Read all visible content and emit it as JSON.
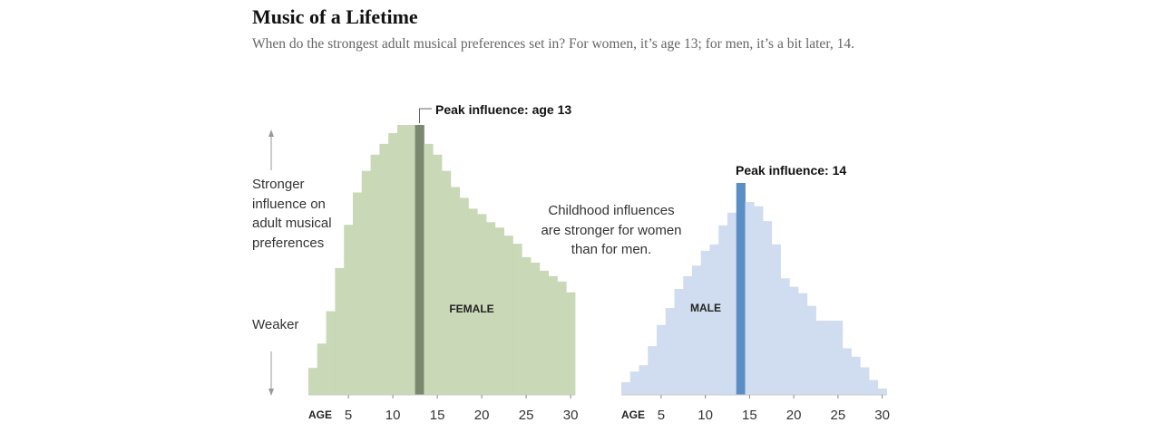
{
  "header": {
    "title": "Music of a Lifetime",
    "subtitle": "When do the strongest adult musical preferences set in? For women, it’s age 13; for men, it’s a bit later, 14."
  },
  "y_axis": {
    "stronger_label": "Stronger influence on adult musical preferences",
    "weaker_label": "Weaker"
  },
  "annotation": {
    "text": "Childhood influences are stronger for women than for men."
  },
  "chart_data": [
    {
      "type": "bar",
      "series": [
        {
          "name": "FEMALE",
          "color": "#c9d8b6",
          "peak_color": "#7a8870"
        }
      ],
      "x_axis_label": "AGE",
      "x": [
        1,
        2,
        3,
        4,
        5,
        6,
        7,
        8,
        9,
        10,
        11,
        12,
        13,
        14,
        15,
        16,
        17,
        18,
        19,
        20,
        21,
        22,
        23,
        24,
        25,
        26,
        27,
        28,
        29,
        30
      ],
      "values": [
        10,
        19,
        31,
        47,
        63,
        75,
        83,
        89,
        93,
        97,
        100,
        100,
        100,
        93,
        89,
        83,
        77,
        73,
        69,
        67,
        64,
        62,
        59,
        56,
        51,
        49,
        46,
        44,
        42,
        38
      ],
      "peak": {
        "age": 13,
        "label": "Peak influence: age 13"
      },
      "xticks": [
        5,
        10,
        15,
        20,
        25,
        30
      ],
      "ylim": [
        0,
        100
      ],
      "relative_scale": true
    },
    {
      "type": "bar",
      "series": [
        {
          "name": "MALE",
          "color": "#d0dcef",
          "peak_color": "#5b8ec4"
        }
      ],
      "x_axis_label": "AGE",
      "x": [
        1,
        2,
        3,
        4,
        5,
        6,
        7,
        8,
        9,
        10,
        11,
        12,
        13,
        14,
        15,
        16,
        17,
        18,
        19,
        20,
        21,
        22,
        23,
        24,
        25,
        26,
        27,
        28,
        29,
        30
      ],
      "values": [
        6,
        11,
        14,
        23,
        33,
        41,
        50,
        56,
        61,
        68,
        71,
        80,
        86,
        100,
        91,
        89,
        82,
        71,
        55,
        51,
        48,
        42,
        35,
        35,
        35,
        22,
        18,
        13,
        7,
        3
      ],
      "peak": {
        "age": 14,
        "label": "Peak influence: 14"
      },
      "xticks": [
        5,
        10,
        15,
        20,
        25,
        30
      ],
      "ylim": [
        0,
        100
      ],
      "relative_scale": true
    }
  ]
}
